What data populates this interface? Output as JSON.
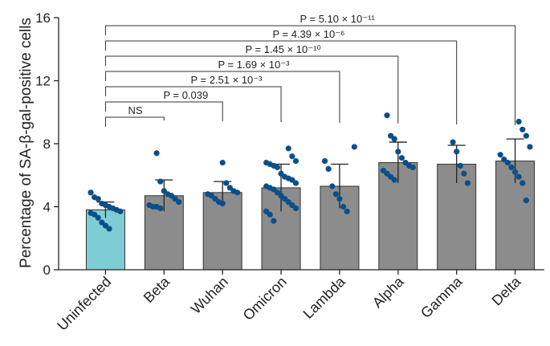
{
  "chart_data": {
    "type": "bar",
    "title": "",
    "xlabel": "",
    "ylabel": "Percentage of SA-β-gal-positive cells",
    "ylim": [
      0,
      16
    ],
    "yticks": [
      "0",
      "4",
      "8",
      "12",
      "16"
    ],
    "grid": false,
    "categories": [
      "Uninfected",
      "Beta",
      "Wuhan",
      "Omicron",
      "Lambda",
      "Alpha",
      "Gamma",
      "Delta"
    ],
    "values": [
      3.8,
      4.7,
      4.9,
      5.2,
      5.3,
      6.8,
      6.7,
      6.9
    ],
    "error": [
      0.5,
      1.0,
      0.7,
      1.5,
      1.4,
      1.3,
      1.2,
      1.4
    ],
    "bar_colors": [
      "#7fcdd4",
      "#8c8c8c",
      "#8c8c8c",
      "#8c8c8c",
      "#8c8c8c",
      "#8c8c8c",
      "#8c8c8c",
      "#8c8c8c"
    ],
    "point_color": "#0b4f8a",
    "points": [
      [
        4.9,
        4.6,
        4.5,
        4.2,
        4.1,
        4.0,
        3.9,
        3.8,
        3.7,
        3.6,
        3.5,
        3.3,
        3.0,
        2.8,
        2.6
      ],
      [
        7.4,
        5.6,
        5.0,
        4.8,
        4.7,
        4.5,
        4.3,
        4.1,
        4.0,
        4.0,
        3.9
      ],
      [
        6.8,
        5.5,
        5.2,
        5.0,
        4.9,
        4.8,
        4.7,
        4.5,
        4.3,
        4.2
      ],
      [
        7.7,
        7.2,
        6.9,
        6.8,
        6.7,
        6.6,
        6.5,
        6.1,
        5.9,
        5.8,
        5.7,
        5.5,
        5.3,
        5.2,
        5.1,
        4.9,
        4.7,
        4.5,
        4.3,
        4.1,
        3.9,
        3.7,
        3.5,
        3.1
      ],
      [
        7.8,
        6.9,
        6.4,
        5.3,
        4.8,
        4.5,
        4.0,
        3.7
      ],
      [
        9.8,
        8.5,
        8.3,
        7.5,
        7.1,
        6.8,
        6.6,
        6.5,
        6.3,
        6.1,
        5.9,
        5.7
      ],
      [
        8.1,
        7.5,
        6.6,
        6.1,
        5.5
      ],
      [
        9.4,
        8.9,
        8.5,
        7.8,
        7.3,
        7.0,
        6.8,
        6.5,
        6.2,
        5.9,
        5.5,
        4.4
      ]
    ],
    "comparisons": [
      {
        "target": "Beta",
        "label": "NS"
      },
      {
        "target": "Wuhan",
        "label": "P = 0.039"
      },
      {
        "target": "Omicron",
        "label": "P = 2.51 × 10⁻³"
      },
      {
        "target": "Lambda",
        "label": "P = 1.69 × 10⁻³"
      },
      {
        "target": "Alpha",
        "label": "P = 1.45 × 10⁻¹⁰"
      },
      {
        "target": "Gamma",
        "label": "P = 4.39 × 10⁻⁶"
      },
      {
        "target": "Delta",
        "label": "P = 5.10 × 10⁻¹¹"
      }
    ]
  }
}
